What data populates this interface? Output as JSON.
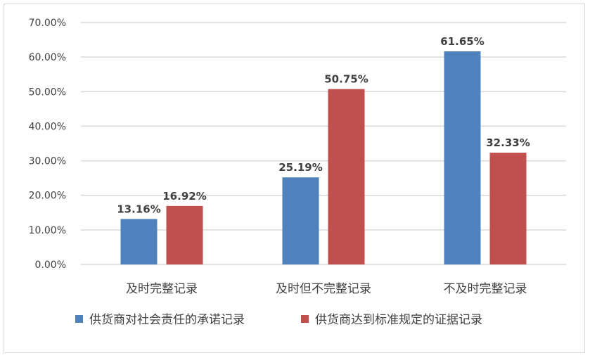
{
  "chart_data": {
    "type": "bar",
    "title": "",
    "xlabel": "",
    "ylabel": "",
    "categories": [
      "及时完整记录",
      "及时但不完整记录",
      "不及时完整记录"
    ],
    "series": [
      {
        "name": "供货商对社会责任的承诺记录",
        "values": [
          13.16,
          25.19,
          61.65
        ],
        "labels": [
          "13.16%",
          "25.19%",
          "61.65%"
        ],
        "color": "#4f81bd"
      },
      {
        "name": "供货商达到标准规定的证据记录",
        "values": [
          16.92,
          50.75,
          32.33
        ],
        "labels": [
          "16.92%",
          "50.75%",
          "32.33%"
        ],
        "color": "#c0504d"
      }
    ],
    "ylim": [
      0,
      70
    ],
    "yticks": [
      0,
      10,
      20,
      30,
      40,
      50,
      60,
      70
    ],
    "ytick_labels": [
      "0.00%",
      "10.00%",
      "20.00%",
      "30.00%",
      "40.00%",
      "50.00%",
      "60.00%",
      "70.00%"
    ],
    "grid": true,
    "legend_position": "bottom",
    "gridline_color": "#d9d9d9"
  }
}
